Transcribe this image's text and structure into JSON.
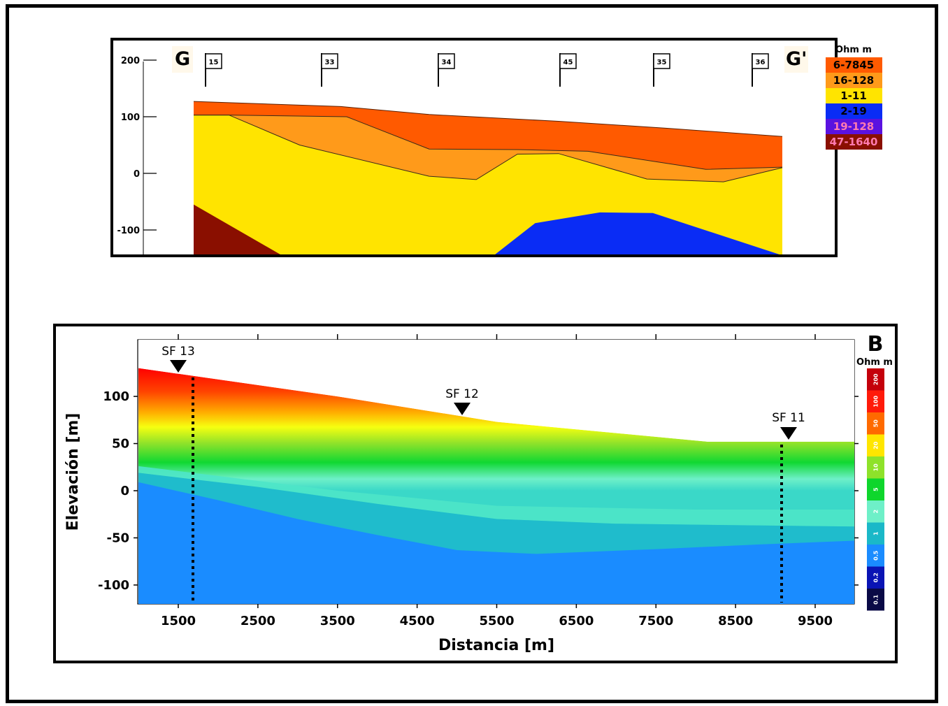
{
  "chart_data": [
    {
      "type": "area",
      "panel_label_left": "G",
      "panel_label_right": "G'",
      "yticks": [
        "200",
        "100",
        "0",
        "-100"
      ],
      "ylim": [
        -145,
        215
      ],
      "x_profile_units": [
        0,
        100
      ],
      "stations": [
        {
          "label": "15",
          "x": 2
        },
        {
          "label": "33",
          "x": 21
        },
        {
          "label": "34",
          "x": 41
        },
        {
          "label": "45",
          "x": 62
        },
        {
          "label": "35",
          "x": 78
        },
        {
          "label": "36",
          "x": 95
        }
      ],
      "legend_title": "Ohm m",
      "legend": [
        {
          "label": "6-7845",
          "color": "#ff5a00"
        },
        {
          "label": "16-128",
          "color": "#ff9a1a"
        },
        {
          "label": "1-11",
          "color": "#ffe400"
        },
        {
          "label": "2-19",
          "color": "#0a2cf5"
        },
        {
          "label": "19-128",
          "color": "#5a12e0"
        },
        {
          "label": "47-1640",
          "color": "#8a0f00"
        }
      ],
      "layers": {
        "top_surface": [
          [
            0,
            127
          ],
          [
            25,
            118
          ],
          [
            40,
            104
          ],
          [
            62,
            92
          ],
          [
            80,
            80
          ],
          [
            100,
            65
          ]
        ],
        "layer1_base": [
          [
            0,
            103
          ],
          [
            6,
            103
          ],
          [
            26,
            100
          ],
          [
            40,
            43
          ],
          [
            55,
            42
          ],
          [
            67,
            39
          ],
          [
            87,
            7
          ],
          [
            100,
            11
          ]
        ],
        "layer2_base": [
          [
            0,
            103
          ],
          [
            6,
            103
          ],
          [
            18,
            50
          ],
          [
            40,
            -5
          ],
          [
            48,
            -11
          ],
          [
            55,
            34
          ],
          [
            62,
            35
          ],
          [
            77,
            -10
          ],
          [
            90,
            -15
          ],
          [
            100,
            10
          ]
        ],
        "conductor_top": [
          [
            51,
            -145
          ],
          [
            58,
            -88
          ],
          [
            69,
            -69
          ],
          [
            78,
            -70
          ],
          [
            100,
            -145
          ]
        ],
        "resistive_base": [
          [
            0,
            -55
          ],
          [
            15,
            -145
          ],
          [
            0,
            -145
          ]
        ]
      }
    },
    {
      "type": "heatmap",
      "panel_label": "B",
      "xlabel": "Distancia [m]",
      "ylabel": "Elevación [m]",
      "xticks": [
        "1500",
        "2500",
        "3500",
        "4500",
        "5500",
        "6500",
        "7500",
        "8500",
        "9500"
      ],
      "yticks": [
        "100",
        "50",
        "0",
        "-50",
        "-100"
      ],
      "xlim": [
        1000,
        10000
      ],
      "ylim": [
        -120,
        155
      ],
      "surface": [
        [
          1000,
          130
        ],
        [
          3500,
          100
        ],
        [
          5500,
          73
        ],
        [
          8150,
          52
        ],
        [
          10000,
          52
        ]
      ],
      "wells": [
        {
          "label": "SF 13",
          "x": 1700,
          "marker_x": 1500
        },
        {
          "label": "SF 12",
          "x": 5050,
          "marker_x": 5050
        },
        {
          "label": "SF 11",
          "x": 9100,
          "marker_x": 9150
        }
      ],
      "colorbar_title": "Ohm m",
      "colorbar": [
        {
          "label": "200",
          "color": "#c4000b"
        },
        {
          "label": "100",
          "color": "#ff1a0a"
        },
        {
          "label": "50",
          "color": "#ff6a00"
        },
        {
          "label": "20",
          "color": "#ffe600"
        },
        {
          "label": "10",
          "color": "#8ee22a"
        },
        {
          "label": "5",
          "color": "#0ed62c"
        },
        {
          "label": "2",
          "color": "#6ef0c8"
        },
        {
          "label": "1",
          "color": "#1ab8c8"
        },
        {
          "label": "0.5",
          "color": "#1a8cff"
        },
        {
          "label": "0.2",
          "color": "#0a14b4"
        },
        {
          "label": "0.1",
          "color": "#0a0a46"
        }
      ]
    }
  ]
}
